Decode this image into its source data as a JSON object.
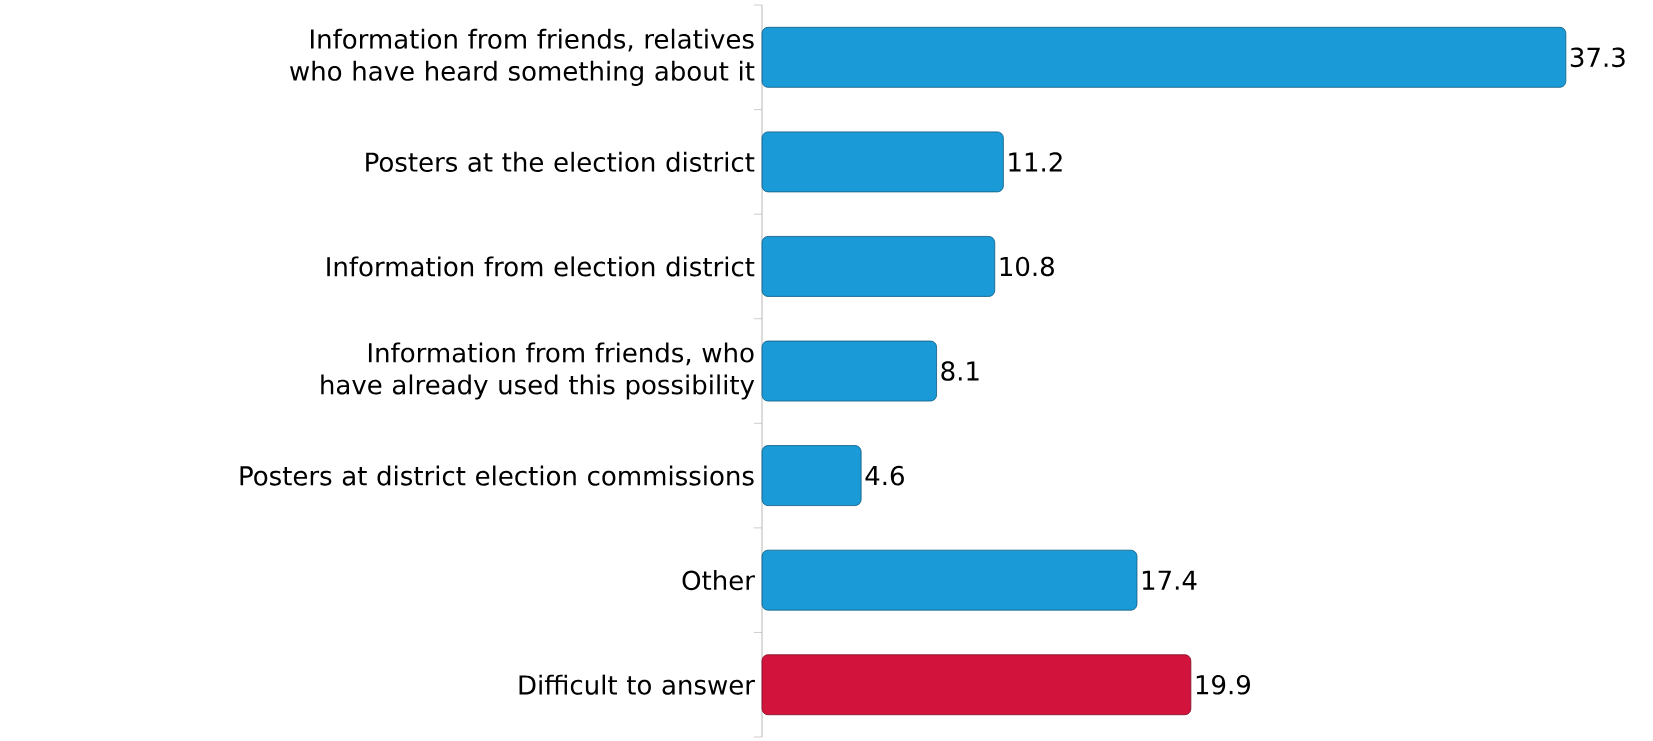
{
  "chart_data": {
    "type": "bar",
    "orientation": "horizontal",
    "categories": [
      "Information from friends, relatives who have heard something about it",
      "Posters at the election district",
      "Information from election district",
      "Information from friends, who have already used this possibility",
      "Posters at district election commissions",
      "Other",
      "Difficult to answer"
    ],
    "values": [
      37.3,
      11.2,
      10.8,
      8.1,
      4.6,
      17.4,
      19.9
    ],
    "colors": [
      "#1a9ad6",
      "#1a9ad6",
      "#1a9ad6",
      "#1a9ad6",
      "#1a9ad6",
      "#1a9ad6",
      "#d2143c"
    ],
    "data_labels": true
  }
}
